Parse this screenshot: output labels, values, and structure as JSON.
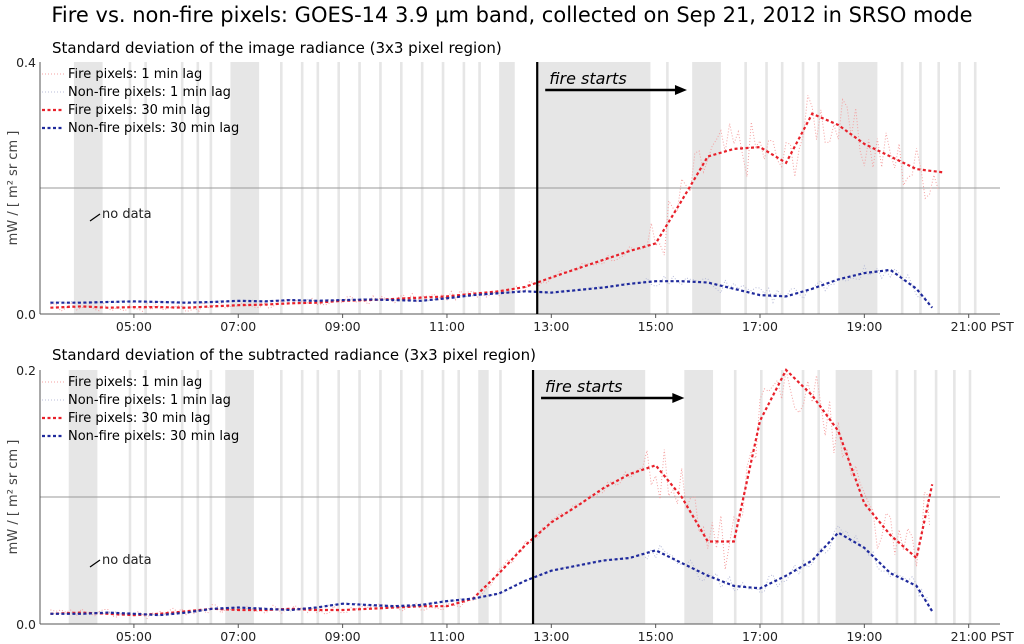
{
  "figure_title": "Fire vs. non-fire pixels: GOES-14 3.9 μm band, collected on Sep 21, 2012 in SRSO mode",
  "fire_label": "fire starts",
  "no_data_label": "no data",
  "tz_label": "PST",
  "colors": {
    "fire_1min": "#f4a0a0",
    "nonfire_1min": "#b8bcd8",
    "fire_30min": "#e8202a",
    "nonfire_30min": "#1f2a9c",
    "nodata_band": "#e6e6e6",
    "vline": "#000000",
    "grid": "#999999"
  },
  "chart_data": [
    {
      "type": "line",
      "title": "Standard deviation of the image radiance (3x3 pixel region)",
      "ylabel": "mW / [ m² sr cm ]",
      "xlabel": "",
      "xlim": [
        3.2,
        21.6
      ],
      "ylim": [
        0.0,
        0.4
      ],
      "yticks": [
        0.0,
        0.4
      ],
      "ytick_labels": [
        "0.0",
        "0.4"
      ],
      "ygrid": [
        0.2
      ],
      "xticks": [
        5,
        7,
        9,
        11,
        13,
        15,
        17,
        19,
        21
      ],
      "xtick_labels": [
        "05:00",
        "07:00",
        "09:00",
        "11:00",
        "13:00",
        "15:00",
        "17:00",
        "19:00",
        "21:00"
      ],
      "fire_start_x": 12.73,
      "fire_arrow_to_x": 15.6,
      "nodata_ranges": [
        [
          3.85,
          4.4
        ],
        [
          6.85,
          7.4
        ],
        [
          4.9,
          4.95
        ],
        [
          5.2,
          5.25
        ],
        [
          5.9,
          5.95
        ],
        [
          6.2,
          6.25
        ],
        [
          6.45,
          6.5
        ],
        [
          7.8,
          7.85
        ],
        [
          8.2,
          8.25
        ],
        [
          8.5,
          8.55
        ],
        [
          8.9,
          8.95
        ],
        [
          9.3,
          9.35
        ],
        [
          9.7,
          9.75
        ],
        [
          10.1,
          10.15
        ],
        [
          10.5,
          10.55
        ],
        [
          10.9,
          10.95
        ],
        [
          11.3,
          11.35
        ],
        [
          11.6,
          11.65
        ],
        [
          12.0,
          12.3
        ],
        [
          12.73,
          14.9
        ],
        [
          15.2,
          15.25
        ],
        [
          15.7,
          16.25
        ],
        [
          16.7,
          16.75
        ],
        [
          17.1,
          17.15
        ],
        [
          17.4,
          17.45
        ],
        [
          17.8,
          17.85
        ],
        [
          18.1,
          18.15
        ],
        [
          18.5,
          19.25
        ],
        [
          19.7,
          19.75
        ],
        [
          20.05,
          20.1
        ],
        [
          20.4,
          20.45
        ],
        [
          20.8,
          20.85
        ],
        [
          21.1,
          21.15
        ]
      ],
      "legend": [
        {
          "label": "Fire pixels: 1 min lag",
          "style": "fire_1min"
        },
        {
          "label": "Non-fire pixels: 1 min lag",
          "style": "nonfire_1min"
        },
        {
          "label": "Fire pixels: 30 min lag",
          "style": "fire_30min"
        },
        {
          "label": "Non-fire pixels: 30 min lag",
          "style": "nonfire_30min"
        }
      ],
      "series": [
        {
          "name": "Fire pixels: 30 min lag",
          "style": "fire_30min",
          "x": [
            3.4,
            4.0,
            4.5,
            5.0,
            5.5,
            6.0,
            6.5,
            7.0,
            7.5,
            8.0,
            8.5,
            9.0,
            9.5,
            10.0,
            10.5,
            11.0,
            11.5,
            12.0,
            12.5,
            13.0,
            13.5,
            14.0,
            14.5,
            15.0,
            15.5,
            16.0,
            16.5,
            17.0,
            17.5,
            18.0,
            18.5,
            19.0,
            19.5,
            20.0,
            20.5
          ],
          "y": [
            0.01,
            0.012,
            0.01,
            0.011,
            0.011,
            0.01,
            0.012,
            0.014,
            0.015,
            0.017,
            0.018,
            0.021,
            0.022,
            0.024,
            0.026,
            0.028,
            0.032,
            0.036,
            0.043,
            0.058,
            0.072,
            0.086,
            0.1,
            0.112,
            0.18,
            0.25,
            0.262,
            0.265,
            0.24,
            0.318,
            0.3,
            0.27,
            0.25,
            0.23,
            0.225
          ]
        },
        {
          "name": "Non-fire pixels: 30 min lag",
          "style": "nonfire_30min",
          "x": [
            3.4,
            4.0,
            4.5,
            5.0,
            5.5,
            6.0,
            6.5,
            7.0,
            7.5,
            8.0,
            8.5,
            9.0,
            9.5,
            10.0,
            10.5,
            11.0,
            11.5,
            12.0,
            12.5,
            13.0,
            13.5,
            14.0,
            14.5,
            15.0,
            15.5,
            16.0,
            16.5,
            17.0,
            17.5,
            18.0,
            18.5,
            19.0,
            19.5,
            20.0,
            20.3
          ],
          "y": [
            0.018,
            0.018,
            0.019,
            0.02,
            0.019,
            0.018,
            0.019,
            0.021,
            0.02,
            0.022,
            0.021,
            0.022,
            0.023,
            0.022,
            0.021,
            0.025,
            0.03,
            0.033,
            0.036,
            0.034,
            0.038,
            0.042,
            0.048,
            0.052,
            0.052,
            0.05,
            0.04,
            0.03,
            0.028,
            0.04,
            0.055,
            0.065,
            0.07,
            0.04,
            0.01
          ]
        }
      ]
    },
    {
      "type": "line",
      "title": "Standard deviation of the subtracted radiance (3x3 pixel region)",
      "ylabel": "mW / [ m² sr cm ]",
      "xlabel": "",
      "xlim": [
        3.2,
        21.6
      ],
      "ylim": [
        0.0,
        0.2
      ],
      "yticks": [
        0.0,
        0.2
      ],
      "ytick_labels": [
        "0.0",
        "0.2"
      ],
      "ygrid": [
        0.1
      ],
      "xticks": [
        5,
        7,
        9,
        11,
        13,
        15,
        17,
        19,
        21
      ],
      "xtick_labels": [
        "05:00",
        "07:00",
        "09:00",
        "11:00",
        "13:00",
        "15:00",
        "17:00",
        "19:00",
        "21:00"
      ],
      "fire_start_x": 12.65,
      "fire_arrow_to_x": 15.55,
      "nodata_ranges": [
        [
          3.75,
          4.3
        ],
        [
          6.75,
          7.3
        ],
        [
          4.9,
          4.95
        ],
        [
          5.2,
          5.25
        ],
        [
          5.9,
          5.95
        ],
        [
          6.2,
          6.25
        ],
        [
          6.45,
          6.5
        ],
        [
          7.8,
          7.85
        ],
        [
          8.2,
          8.25
        ],
        [
          8.5,
          8.55
        ],
        [
          8.9,
          8.95
        ],
        [
          9.3,
          9.35
        ],
        [
          9.7,
          9.75
        ],
        [
          10.1,
          10.15
        ],
        [
          10.5,
          10.55
        ],
        [
          10.9,
          10.95
        ],
        [
          11.2,
          11.25
        ],
        [
          11.6,
          11.8
        ],
        [
          12.0,
          12.05
        ],
        [
          12.65,
          14.8
        ],
        [
          15.55,
          16.1
        ],
        [
          16.5,
          16.55
        ],
        [
          17.0,
          17.05
        ],
        [
          17.4,
          17.45
        ],
        [
          17.8,
          17.85
        ],
        [
          18.1,
          18.15
        ],
        [
          18.45,
          19.15
        ],
        [
          19.6,
          19.65
        ],
        [
          19.95,
          20.0
        ],
        [
          20.35,
          20.4
        ],
        [
          20.7,
          20.75
        ],
        [
          21.0,
          21.05
        ]
      ],
      "legend": [
        {
          "label": "Fire pixels: 1 min lag",
          "style": "fire_1min"
        },
        {
          "label": "Non-fire pixels: 1 min lag",
          "style": "nonfire_1min"
        },
        {
          "label": "Fire pixels: 30 min lag",
          "style": "fire_30min"
        },
        {
          "label": "Non-fire pixels: 30 min lag",
          "style": "nonfire_30min"
        }
      ],
      "series": [
        {
          "name": "Fire pixels: 30 min lag",
          "style": "fire_30min",
          "x": [
            3.4,
            4.0,
            4.5,
            5.0,
            5.5,
            6.0,
            6.5,
            7.0,
            7.5,
            8.0,
            8.5,
            9.0,
            9.5,
            10.0,
            10.5,
            11.0,
            11.5,
            12.0,
            12.5,
            13.0,
            13.5,
            14.0,
            14.5,
            15.0,
            15.5,
            16.0,
            16.5,
            17.0,
            17.5,
            18.0,
            18.5,
            19.0,
            19.5,
            20.0,
            20.3
          ],
          "y": [
            0.008,
            0.009,
            0.008,
            0.007,
            0.008,
            0.01,
            0.012,
            0.011,
            0.011,
            0.012,
            0.011,
            0.011,
            0.012,
            0.013,
            0.014,
            0.014,
            0.02,
            0.04,
            0.062,
            0.08,
            0.093,
            0.107,
            0.118,
            0.125,
            0.1,
            0.065,
            0.065,
            0.16,
            0.2,
            0.18,
            0.152,
            0.095,
            0.07,
            0.052,
            0.11
          ]
        },
        {
          "name": "Non-fire pixels: 30 min lag",
          "style": "nonfire_30min",
          "x": [
            3.4,
            4.0,
            4.5,
            5.0,
            5.5,
            6.0,
            6.5,
            7.0,
            7.5,
            8.0,
            8.5,
            9.0,
            9.5,
            10.0,
            10.5,
            11.0,
            11.5,
            12.0,
            12.5,
            13.0,
            13.5,
            14.0,
            14.5,
            15.0,
            15.5,
            16.0,
            16.5,
            17.0,
            17.5,
            18.0,
            18.5,
            19.0,
            19.5,
            20.0,
            20.3
          ],
          "y": [
            0.008,
            0.008,
            0.009,
            0.008,
            0.007,
            0.009,
            0.012,
            0.013,
            0.012,
            0.011,
            0.013,
            0.016,
            0.015,
            0.014,
            0.015,
            0.018,
            0.02,
            0.024,
            0.034,
            0.042,
            0.046,
            0.05,
            0.052,
            0.058,
            0.048,
            0.038,
            0.03,
            0.028,
            0.038,
            0.05,
            0.072,
            0.06,
            0.04,
            0.03,
            0.01
          ]
        }
      ]
    }
  ]
}
